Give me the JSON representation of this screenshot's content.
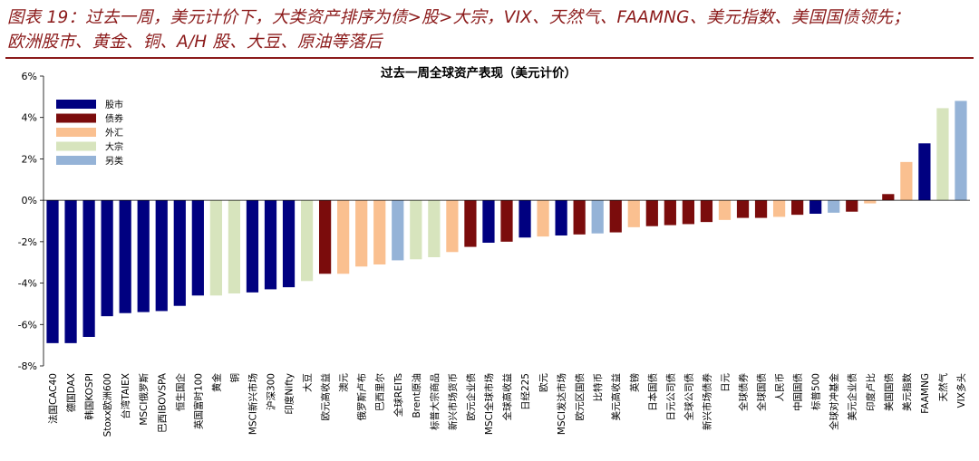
{
  "caption": {
    "line1": "图表 19：过去一周，美元计价下，大类资产排序为债>股>大宗，VIX、天然气、FAAMNG、美元指数、美国国债领先；",
    "line2": "欧洲股市、黄金、铜、A/H 股、大豆、原油等落后"
  },
  "colors": {
    "股市": "#000080",
    "债券": "#7b0c0c",
    "外汇": "#fac090",
    "大宗": "#d7e4bd",
    "另类": "#95b3d7",
    "caption": "#8b1a1a"
  },
  "chart_data": {
    "type": "bar",
    "title": "过去一周全球资产表现（美元计价）",
    "ylim": [
      -8,
      6
    ],
    "yticks": [
      -8,
      -6,
      -4,
      -2,
      0,
      2,
      4,
      6
    ],
    "ytick_labels": [
      "-8%",
      "-6%",
      "-4%",
      "-2%",
      "0%",
      "2%",
      "4%",
      "6%"
    ],
    "grid": false,
    "legend_placement": "top-left",
    "legend": [
      {
        "name": "股市",
        "color": "#000080"
      },
      {
        "name": "债券",
        "color": "#7b0c0c"
      },
      {
        "name": "外汇",
        "color": "#fac090"
      },
      {
        "name": "大宗",
        "color": "#d7e4bd"
      },
      {
        "name": "另类",
        "color": "#95b3d7"
      }
    ],
    "bars": [
      {
        "label": "法国CAC40",
        "value": -6.9,
        "group": "股市"
      },
      {
        "label": "德国DAX",
        "value": -6.9,
        "group": "股市"
      },
      {
        "label": "韩国KOSPI",
        "value": -6.6,
        "group": "股市"
      },
      {
        "label": "Stoxx欧洲600",
        "value": -5.6,
        "group": "股市"
      },
      {
        "label": "台湾TAIEX",
        "value": -5.45,
        "group": "股市"
      },
      {
        "label": "MSCI俄罗斯",
        "value": -5.4,
        "group": "股市"
      },
      {
        "label": "巴西IBOVSPA",
        "value": -5.35,
        "group": "股市"
      },
      {
        "label": "恒生国企",
        "value": -5.1,
        "group": "股市"
      },
      {
        "label": "英国富时100",
        "value": -4.6,
        "group": "股市"
      },
      {
        "label": "黄金",
        "value": -4.6,
        "group": "大宗"
      },
      {
        "label": "铜",
        "value": -4.5,
        "group": "大宗"
      },
      {
        "label": "MSCI新兴市场",
        "value": -4.45,
        "group": "股市"
      },
      {
        "label": "沪深300",
        "value": -4.3,
        "group": "股市"
      },
      {
        "label": "印度Nifty",
        "value": -4.2,
        "group": "股市"
      },
      {
        "label": "大豆",
        "value": -3.9,
        "group": "大宗"
      },
      {
        "label": "欧元高收益",
        "value": -3.55,
        "group": "债券"
      },
      {
        "label": "澳元",
        "value": -3.55,
        "group": "外汇"
      },
      {
        "label": "俄罗斯卢布",
        "value": -3.2,
        "group": "外汇"
      },
      {
        "label": "巴西里尔",
        "value": -3.1,
        "group": "外汇"
      },
      {
        "label": "全球REITs",
        "value": -2.9,
        "group": "另类"
      },
      {
        "label": "Brent原油",
        "value": -2.85,
        "group": "大宗"
      },
      {
        "label": "标普大宗商品",
        "value": -2.75,
        "group": "大宗"
      },
      {
        "label": "新兴市场货币",
        "value": -2.5,
        "group": "外汇"
      },
      {
        "label": "欧元企业债",
        "value": -2.25,
        "group": "债券"
      },
      {
        "label": "MSCI全球市场",
        "value": -2.05,
        "group": "股市"
      },
      {
        "label": "全球高收益",
        "value": -2.0,
        "group": "债券"
      },
      {
        "label": "日经225",
        "value": -1.8,
        "group": "股市"
      },
      {
        "label": "欧元",
        "value": -1.75,
        "group": "外汇"
      },
      {
        "label": "MSCI发达市场",
        "value": -1.7,
        "group": "股市"
      },
      {
        "label": "欧元区国债",
        "value": -1.65,
        "group": "债券"
      },
      {
        "label": "比特币",
        "value": -1.6,
        "group": "另类"
      },
      {
        "label": "美元高收益",
        "value": -1.55,
        "group": "债券"
      },
      {
        "label": "英镑",
        "value": -1.3,
        "group": "外汇"
      },
      {
        "label": "日本国债",
        "value": -1.25,
        "group": "债券"
      },
      {
        "label": "日元公司债",
        "value": -1.2,
        "group": "债券"
      },
      {
        "label": "全球公司债",
        "value": -1.15,
        "group": "债券"
      },
      {
        "label": "新兴市场债券",
        "value": -1.05,
        "group": "债券"
      },
      {
        "label": "日元",
        "value": -0.95,
        "group": "外汇"
      },
      {
        "label": "全球债券",
        "value": -0.85,
        "group": "债券"
      },
      {
        "label": "全球国债",
        "value": -0.85,
        "group": "债券"
      },
      {
        "label": "人民币",
        "value": -0.8,
        "group": "外汇"
      },
      {
        "label": "中国国债",
        "value": -0.7,
        "group": "债券"
      },
      {
        "label": "标普500",
        "value": -0.65,
        "group": "股市"
      },
      {
        "label": "全球对冲基金",
        "value": -0.6,
        "group": "另类"
      },
      {
        "label": "美元企业债",
        "value": -0.55,
        "group": "债券"
      },
      {
        "label": "印度卢比",
        "value": -0.15,
        "group": "外汇"
      },
      {
        "label": "美国国债",
        "value": 0.3,
        "group": "债券"
      },
      {
        "label": "美元指数",
        "value": 1.85,
        "group": "外汇"
      },
      {
        "label": "FAAMNG",
        "value": 2.75,
        "group": "股市"
      },
      {
        "label": "天然气",
        "value": 4.45,
        "group": "大宗"
      },
      {
        "label": "VIX多头",
        "value": 4.8,
        "group": "另类"
      }
    ]
  }
}
